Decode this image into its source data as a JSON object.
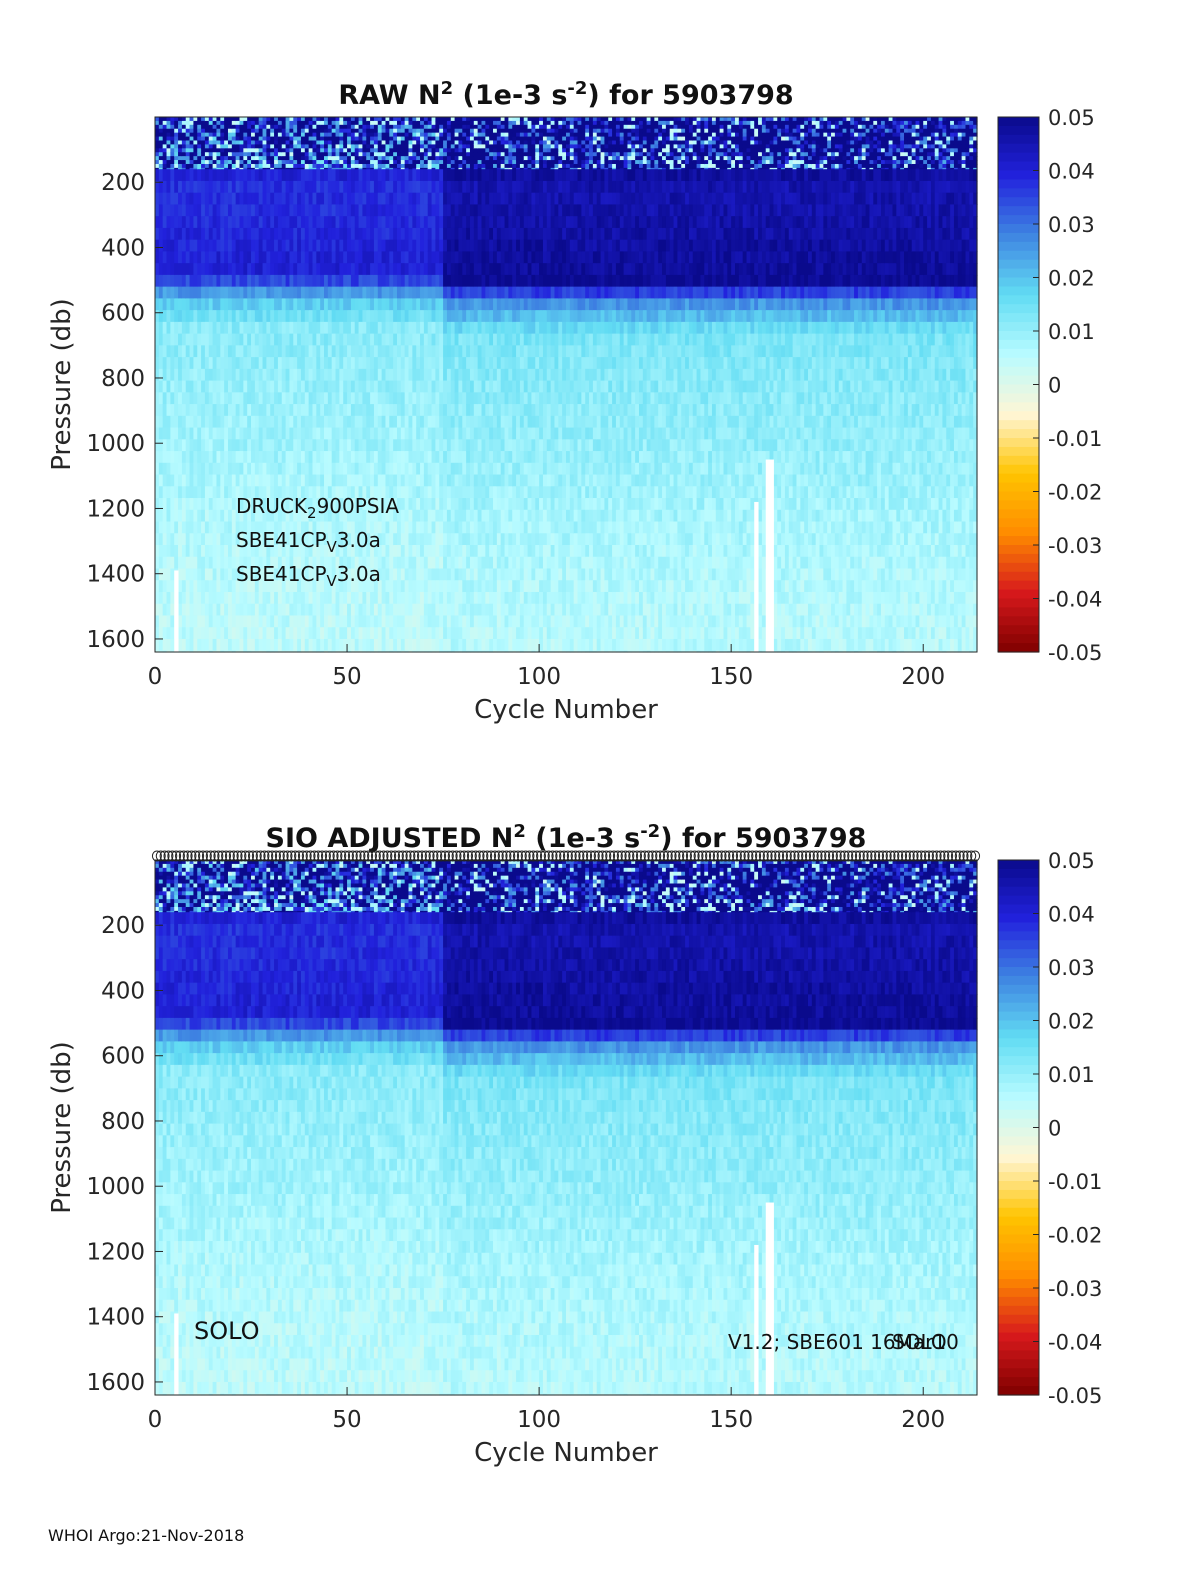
{
  "footer": "WHOI Argo:21-Nov-2018",
  "colormap": {
    "name": "blue-white-red diverging",
    "stops": [
      "#7f0000",
      "#d7191c",
      "#ff8c00",
      "#ffc400",
      "#fff6d5",
      "#b8fbff",
      "#62dcf3",
      "#3f86e2",
      "#2222dd",
      "#0a0a8c"
    ]
  },
  "chart_data": [
    {
      "type": "heatmap",
      "title_main": "RAW N",
      "title_sup1": "2",
      "title_mid": " (1e-3 s",
      "title_sup2": "-2",
      "title_end": ") for 5903798",
      "xlabel": "Cycle Number",
      "ylabel": "Pressure (db)",
      "xlim": [
        0,
        214
      ],
      "ylim": [
        1640,
        0
      ],
      "xticks": [
        "0",
        "50",
        "100",
        "150",
        "200"
      ],
      "xtick_values": [
        0,
        50,
        100,
        150,
        200
      ],
      "yticks": [
        "200",
        "400",
        "600",
        "800",
        "1000",
        "1200",
        "1400",
        "1600"
      ],
      "ytick_values": [
        200,
        400,
        600,
        800,
        1000,
        1200,
        1400,
        1600
      ],
      "colorbar": {
        "range": [
          -0.05,
          0.05
        ],
        "ticks": [
          "0.05",
          "0.04",
          "0.03",
          "0.02",
          "0.01",
          "0",
          "-0.01",
          "-0.02",
          "-0.03",
          "-0.04",
          "-0.05"
        ],
        "tick_values": [
          0.05,
          0.04,
          0.03,
          0.02,
          0.01,
          0,
          -0.01,
          -0.02,
          -0.03,
          -0.04,
          -0.05
        ]
      },
      "depth_profile": [
        {
          "p": 20,
          "v": 0.052
        },
        {
          "p": 120,
          "v": 0.05
        },
        {
          "p": 200,
          "v": 0.042
        },
        {
          "p": 350,
          "v": 0.043
        },
        {
          "p": 490,
          "v": 0.045
        },
        {
          "p": 560,
          "v": 0.023
        },
        {
          "p": 650,
          "v": 0.013
        },
        {
          "p": 800,
          "v": 0.011
        },
        {
          "p": 1000,
          "v": 0.0095
        },
        {
          "p": 1200,
          "v": 0.0075
        },
        {
          "p": 1400,
          "v": 0.006
        },
        {
          "p": 1640,
          "v": 0.005
        }
      ],
      "missing_cycles": [
        6,
        157,
        160,
        161
      ],
      "missing_shallow_limit": 1050,
      "annotations": {
        "sensor1_a": "DRUCK",
        "sensor1_sub": "2",
        "sensor1_b": "900PSIA",
        "sensor2_a": "SBE41CP",
        "sensor2_sub": "V",
        "sensor2_b": "3.0a",
        "sensor3_a": "SBE41CP",
        "sensor3_sub": "V",
        "sensor3_b": "3.0a"
      }
    },
    {
      "type": "heatmap",
      "title_main": "SIO  ADJUSTED N",
      "title_sup1": "2",
      "title_mid": " (1e-3 s",
      "title_sup2": "-2",
      "title_end": ") for 5903798",
      "xlabel": "Cycle Number",
      "ylabel": "Pressure (db)",
      "xlim": [
        0,
        214
      ],
      "ylim": [
        1640,
        0
      ],
      "xticks": [
        "0",
        "50",
        "100",
        "150",
        "200"
      ],
      "xtick_values": [
        0,
        50,
        100,
        150,
        200
      ],
      "yticks": [
        "200",
        "400",
        "600",
        "800",
        "1000",
        "1200",
        "1400",
        "1600"
      ],
      "ytick_values": [
        200,
        400,
        600,
        800,
        1000,
        1200,
        1400,
        1600
      ],
      "colorbar": {
        "range": [
          -0.05,
          0.05
        ],
        "ticks": [
          "0.05",
          "0.04",
          "0.03",
          "0.02",
          "0.01",
          "0",
          "-0.01",
          "-0.02",
          "-0.03",
          "-0.04",
          "-0.05"
        ],
        "tick_values": [
          0.05,
          0.04,
          0.03,
          0.02,
          0.01,
          0,
          -0.01,
          -0.02,
          -0.03,
          -0.04,
          -0.05
        ]
      },
      "depth_profile": [
        {
          "p": 20,
          "v": 0.052
        },
        {
          "p": 120,
          "v": 0.05
        },
        {
          "p": 200,
          "v": 0.042
        },
        {
          "p": 350,
          "v": 0.043
        },
        {
          "p": 490,
          "v": 0.045
        },
        {
          "p": 560,
          "v": 0.023
        },
        {
          "p": 650,
          "v": 0.013
        },
        {
          "p": 800,
          "v": 0.011
        },
        {
          "p": 1000,
          "v": 0.0095
        },
        {
          "p": 1200,
          "v": 0.0075
        },
        {
          "p": 1400,
          "v": 0.006
        },
        {
          "p": 1640,
          "v": 0.005
        }
      ],
      "missing_cycles": [
        6,
        157,
        160,
        161
      ],
      "missing_shallow_limit": 1050,
      "qc_marker_row": true,
      "annotations": {
        "platform": "SOLO",
        "firmware": "V1.2; SBE601 16Mar10",
        "firmware_overlap": "SOLO"
      }
    }
  ]
}
